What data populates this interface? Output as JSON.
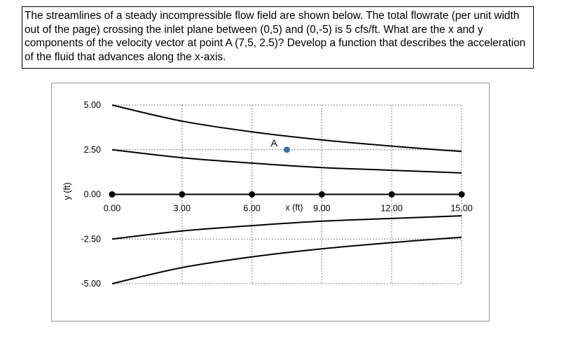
{
  "problem": {
    "text": "The streamlines of a steady incompressible flow field are shown below. The total flowrate (per unit width out of the page) crossing the inlet plane between (0,5) and (0,-5) is 5 cfs/ft. What are the x and y components of the velocity vector at point A (7,5, 2.5)? Develop a function that describes the acceleration of the fluid that advances along the x-axis."
  },
  "chart_data": {
    "type": "line",
    "xlabel": "x (ft)",
    "ylabel": "y (ft)",
    "xlim": [
      0,
      15
    ],
    "ylim": [
      -5,
      5
    ],
    "x_ticks": [
      "0.00",
      "3.00",
      "6.00",
      "9.00",
      "12.00",
      "15.00"
    ],
    "y_ticks": [
      "5.00",
      "2.50",
      "0.00",
      "-2.50",
      "-5.00"
    ],
    "x_tick_values": [
      0,
      3,
      6,
      9,
      12,
      15
    ],
    "y_tick_values": [
      5,
      2.5,
      0,
      -2.5,
      -5
    ],
    "grid": "dashed",
    "series": [
      {
        "x": [
          0,
          3,
          6,
          9,
          12,
          15
        ],
        "y": [
          5.0,
          4.1,
          3.5,
          3.05,
          2.7,
          2.4
        ]
      },
      {
        "x": [
          0,
          3,
          6,
          9,
          12,
          15
        ],
        "y": [
          2.5,
          2.05,
          1.75,
          1.5,
          1.35,
          1.2
        ]
      },
      {
        "x": [
          0,
          3,
          6,
          9,
          12,
          15
        ],
        "y": [
          0,
          0,
          0,
          0,
          0,
          0
        ],
        "markers": true
      },
      {
        "x": [
          0,
          3,
          6,
          9,
          12,
          15
        ],
        "y": [
          -2.5,
          -2.05,
          -1.75,
          -1.5,
          -1.35,
          -1.2
        ]
      },
      {
        "x": [
          0,
          3,
          6,
          9,
          12,
          15
        ],
        "y": [
          -5.0,
          -4.1,
          -3.5,
          -3.05,
          -2.7,
          -2.4
        ]
      }
    ],
    "annotations": [
      {
        "label": "A",
        "x": 7.5,
        "y": 2.5,
        "color": "#3d6ea8"
      }
    ],
    "colors": {
      "line": "#000000",
      "grid": "#808080",
      "point_a": "#3d6ea8"
    }
  }
}
